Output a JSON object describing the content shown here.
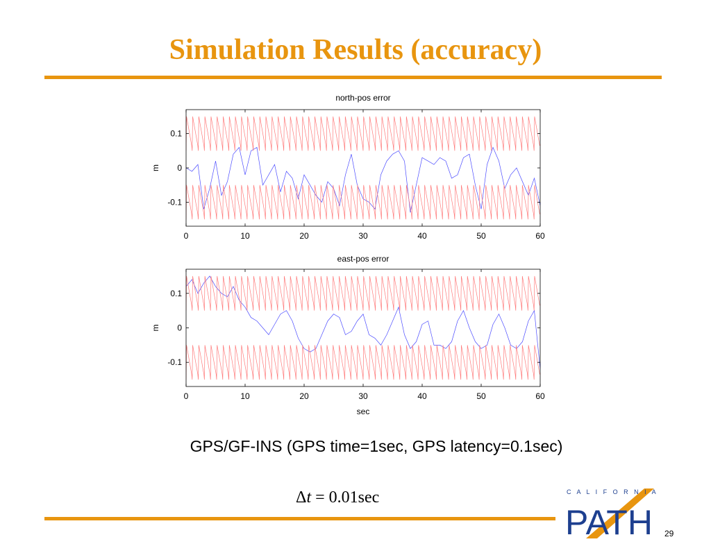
{
  "slide": {
    "title": "Simulation Results (accuracy)",
    "caption": "GPS/GF-INS (GPS time=1sec, GPS latency=0.1sec)",
    "formula": {
      "lhs_delta": "Δ",
      "lhs_var": "t",
      "equals": "=",
      "rhs": "0.01sec"
    },
    "page_number": "29"
  },
  "logo": {
    "top_text": "C A L I F O R N I A",
    "main_text": "PATH"
  },
  "colors": {
    "accent": "#e8950f",
    "series_blue": "#4b4bff",
    "series_red": "#ff7a7a",
    "logo_blue": "#1d3f8f"
  },
  "chart_data": [
    {
      "type": "line",
      "title": "north-pos error",
      "ylabel": "m",
      "xlabel": "",
      "xlim": [
        0,
        60
      ],
      "ylim": [
        -0.17,
        0.17
      ],
      "xticks": [
        "0",
        "10",
        "20",
        "30",
        "40",
        "50",
        "60"
      ],
      "yticks": [
        "0.1",
        "0",
        "-0.1"
      ],
      "ytick_values": [
        0.1,
        0,
        -0.1
      ],
      "grid": false,
      "series": [
        {
          "color": "#4b4bff",
          "style": "solid",
          "points": [
            [
              0,
              0.0
            ],
            [
              1,
              -0.01
            ],
            [
              2,
              0.01
            ],
            [
              3,
              -0.12
            ],
            [
              4,
              -0.06
            ],
            [
              5,
              0.02
            ],
            [
              6,
              -0.08
            ],
            [
              7,
              -0.04
            ],
            [
              8,
              0.04
            ],
            [
              9,
              0.06
            ],
            [
              10,
              -0.02
            ],
            [
              11,
              0.05
            ],
            [
              12,
              0.06
            ],
            [
              13,
              -0.05
            ],
            [
              14,
              -0.02
            ],
            [
              15,
              0.01
            ],
            [
              16,
              -0.07
            ],
            [
              17,
              -0.01
            ],
            [
              18,
              -0.03
            ],
            [
              19,
              -0.09
            ],
            [
              20,
              -0.02
            ],
            [
              21,
              -0.05
            ],
            [
              22,
              -0.08
            ],
            [
              23,
              -0.1
            ],
            [
              24,
              -0.04
            ],
            [
              25,
              -0.06
            ],
            [
              26,
              -0.11
            ],
            [
              27,
              -0.02
            ],
            [
              28,
              0.04
            ],
            [
              29,
              -0.05
            ],
            [
              30,
              -0.09
            ],
            [
              31,
              -0.1
            ],
            [
              32,
              -0.12
            ],
            [
              33,
              -0.02
            ],
            [
              34,
              0.02
            ],
            [
              35,
              0.04
            ],
            [
              36,
              0.05
            ],
            [
              37,
              0.02
            ],
            [
              38,
              -0.13
            ],
            [
              39,
              -0.05
            ],
            [
              40,
              0.03
            ],
            [
              41,
              0.02
            ],
            [
              42,
              0.01
            ],
            [
              43,
              0.03
            ],
            [
              44,
              0.02
            ],
            [
              45,
              -0.03
            ],
            [
              46,
              -0.02
            ],
            [
              47,
              0.03
            ],
            [
              48,
              0.04
            ],
            [
              49,
              -0.05
            ],
            [
              50,
              -0.12
            ],
            [
              51,
              0.01
            ],
            [
              52,
              0.06
            ],
            [
              53,
              0.02
            ],
            [
              54,
              -0.06
            ],
            [
              55,
              -0.02
            ],
            [
              56,
              0.0
            ],
            [
              57,
              -0.04
            ],
            [
              58,
              -0.08
            ],
            [
              59,
              -0.03
            ],
            [
              60,
              -0.11
            ]
          ]
        },
        {
          "color": "#ff7a7a",
          "style": "solid",
          "pattern": "sawtooth-band",
          "band": [
            0.05,
            0.15
          ],
          "teeth": 58
        },
        {
          "color": "#ff7a7a",
          "style": "solid",
          "pattern": "sawtooth-band",
          "band": [
            -0.15,
            -0.05
          ],
          "teeth": 58
        }
      ]
    },
    {
      "type": "line",
      "title": "east-pos error",
      "ylabel": "m",
      "xlabel": "sec",
      "xlim": [
        0,
        60
      ],
      "ylim": [
        -0.17,
        0.17
      ],
      "xticks": [
        "0",
        "10",
        "20",
        "30",
        "40",
        "50",
        "60"
      ],
      "yticks": [
        "0.1",
        "0",
        "-0.1"
      ],
      "ytick_values": [
        0.1,
        0,
        -0.1
      ],
      "grid": false,
      "series": [
        {
          "color": "#4b4bff",
          "style": "solid",
          "points": [
            [
              0,
              0.12
            ],
            [
              1,
              0.14
            ],
            [
              2,
              0.1
            ],
            [
              3,
              0.13
            ],
            [
              4,
              0.15
            ],
            [
              5,
              0.12
            ],
            [
              6,
              0.1
            ],
            [
              7,
              0.09
            ],
            [
              8,
              0.12
            ],
            [
              9,
              0.08
            ],
            [
              10,
              0.06
            ],
            [
              11,
              0.03
            ],
            [
              12,
              0.02
            ],
            [
              13,
              0.0
            ],
            [
              14,
              -0.02
            ],
            [
              15,
              0.01
            ],
            [
              16,
              0.04
            ],
            [
              17,
              0.05
            ],
            [
              18,
              0.02
            ],
            [
              19,
              -0.03
            ],
            [
              20,
              -0.06
            ],
            [
              21,
              -0.07
            ],
            [
              22,
              -0.06
            ],
            [
              23,
              -0.02
            ],
            [
              24,
              0.02
            ],
            [
              25,
              0.04
            ],
            [
              26,
              0.03
            ],
            [
              27,
              -0.02
            ],
            [
              28,
              -0.01
            ],
            [
              29,
              0.02
            ],
            [
              30,
              0.04
            ],
            [
              31,
              -0.02
            ],
            [
              32,
              -0.03
            ],
            [
              33,
              -0.05
            ],
            [
              34,
              -0.02
            ],
            [
              35,
              0.02
            ],
            [
              36,
              0.06
            ],
            [
              37,
              -0.02
            ],
            [
              38,
              -0.06
            ],
            [
              39,
              -0.04
            ],
            [
              40,
              0.01
            ],
            [
              41,
              0.02
            ],
            [
              42,
              -0.05
            ],
            [
              43,
              -0.05
            ],
            [
              44,
              -0.06
            ],
            [
              45,
              -0.04
            ],
            [
              46,
              0.02
            ],
            [
              47,
              0.05
            ],
            [
              48,
              0.0
            ],
            [
              49,
              -0.04
            ],
            [
              50,
              -0.06
            ],
            [
              51,
              -0.05
            ],
            [
              52,
              0.01
            ],
            [
              53,
              0.04
            ],
            [
              54,
              0.0
            ],
            [
              55,
              -0.05
            ],
            [
              56,
              -0.06
            ],
            [
              57,
              -0.04
            ],
            [
              58,
              0.02
            ],
            [
              59,
              0.05
            ],
            [
              60,
              -0.12
            ]
          ]
        },
        {
          "color": "#ff7a7a",
          "style": "solid",
          "pattern": "sawtooth-band",
          "band": [
            0.05,
            0.15
          ],
          "teeth": 58
        },
        {
          "color": "#ff7a7a",
          "style": "solid",
          "pattern": "sawtooth-band",
          "band": [
            -0.15,
            -0.05
          ],
          "teeth": 58
        }
      ]
    }
  ]
}
